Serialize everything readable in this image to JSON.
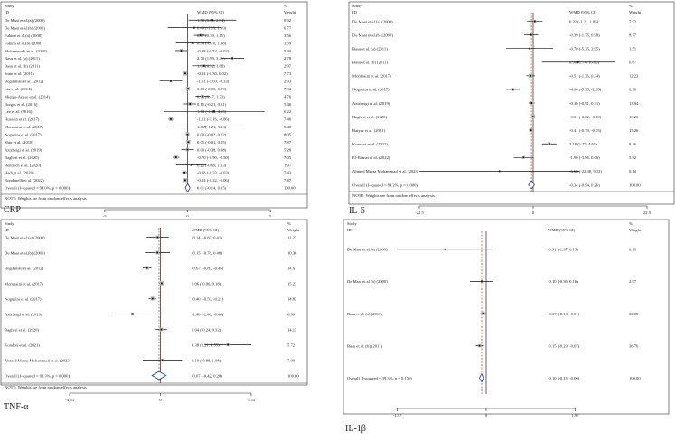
{
  "chart_data": [
    {
      "type": "forest",
      "title": "CRP",
      "headers": {
        "study_line1": "Study",
        "study_line2": "ID",
        "effect": "WMD (95% CI)",
        "weight_line1": "%",
        "weight_line2": "Weight"
      },
      "xlim": [
        -7.5,
        7.5
      ],
      "ticks": [
        "-5",
        "0",
        "5"
      ],
      "ticks_values": [
        -5,
        0,
        5
      ],
      "pooled_line": 0.01,
      "rows": [
        {
          "study": "De Maat et al.(a) (2000)",
          "est": 1.5,
          "lo": 0.06,
          "hi": 2.94,
          "ci": "1.50 (0.06, 2.94)",
          "weight": "0.92"
        },
        {
          "study": "De Maat et al.(b) (2000)",
          "est": 0.4,
          "lo": -1.19,
          "hi": 1.99,
          "ci": "0.40 (-1.19, 1.99)",
          "weight": "0.77"
        },
        {
          "study": "Fukino et al.(a) (2008)",
          "est": 0.77,
          "lo": 0.39,
          "hi": 1.15,
          "ci": "0.77 (0.39, 1.15)",
          "weight": "3.56"
        },
        {
          "study": "Fukino et al.(b) (2008)",
          "est": 0.34,
          "lo": -0.7,
          "hi": 1.38,
          "ci": "0.34 (-0.70, 1.38)",
          "weight": "1.59"
        },
        {
          "study": "Mohammadi et al. (2010)",
          "est": -0.38,
          "lo": -0.74,
          "hi": -0.02,
          "ci": "-0.38 (-0.74, -0.02)",
          "weight": "5.40"
        },
        {
          "study": "Basu et al. (a) (2011)",
          "est": 2.7,
          "lo": 1.99,
          "hi": 3.41,
          "ci": "2.70 (1.99, 3.41)",
          "weight": "2.78"
        },
        {
          "study": "Basu et al. (b) (2011)",
          "est": 1.0,
          "lo": 0.32,
          "hi": 1.68,
          "ci": "1.00 (0.32, 1.68)",
          "weight": "2.97"
        },
        {
          "study": "Sone et al. (2011)",
          "est": -0.14,
          "lo": -0.3,
          "hi": 0.02,
          "ci": "-0.14 (-0.30, 0.02)",
          "weight": "7.73"
        },
        {
          "study": "Bogdanski et al. (2012)",
          "est": -1.01,
          "lo": -1.69,
          "hi": -0.33,
          "ci": "-1.01 (-1.69, -0.33)",
          "weight": "2.93"
        },
        {
          "study": "Liu et al. (2014)",
          "est": 0.03,
          "lo": -0.03,
          "hi": 0.09,
          "ci": "0.03 (-0.03, 0.09)",
          "weight": "7.94"
        },
        {
          "study": "Mielgo-Ayuso et al. (2014)",
          "est": 0.9,
          "lo": 0.47,
          "hi": 1.33,
          "ci": "0.90 (0.47, 1.33)",
          "weight": "4.76"
        },
        {
          "study": "Borges et al. (2016)",
          "est": 0.15,
          "lo": -0.21,
          "hi": 0.51,
          "ci": "0.15 (-0.21, 0.51)",
          "weight": "5.46"
        },
        {
          "study": "Lee et al. (2016)",
          "est": 1.6,
          "lo": -1.45,
          "hi": 4.65,
          "ci": "1.60 (-1.45, 4.65)",
          "weight": "0.22"
        },
        {
          "study": "Hussain et al. (2017)",
          "est": -1.01,
          "lo": -1.16,
          "hi": -0.86,
          "ci": "-1.01 (-1.16, -0.86)",
          "weight": "7.46"
        },
        {
          "study": "Mombaini et al. (2017)",
          "est": 1.06,
          "lo": -1.21,
          "hi": 3.33,
          "ci": "1.06 (-1.21, 3.33)",
          "weight": "0.40"
        },
        {
          "study": "Nogueira et al. (2017)",
          "est": 0.0,
          "lo": -0.02,
          "hi": 0.02,
          "ci": "0.00 (-0.02, 0.02)",
          "weight": "8.05"
        },
        {
          "study": "Shin et al. (2018)",
          "est": 0.05,
          "lo": -0.01,
          "hi": 0.05,
          "ci": "0.05 (-0.01, 0.05)",
          "weight": "7.87"
        },
        {
          "study": "Azizbeigi et al. (2019)",
          "est": 0.0,
          "lo": -0.38,
          "hi": 0.38,
          "ci": "0.00 (-0.38, 0.38)",
          "weight": "5.28"
        },
        {
          "study": "Bagheri et al. (2020)",
          "est": -0.7,
          "lo": -0.9,
          "hi": -0.5,
          "ci": "-0.70 (-0.90, -0.50)",
          "weight": "7.05"
        },
        {
          "study": "Benlloch et al. (2020)",
          "est": 0.22,
          "lo": -0.69,
          "hi": 1.13,
          "ci": "0.22 (-0.69, 1.13)",
          "weight": "1.97"
        },
        {
          "study": "Hadi et al. (2020)",
          "est": -0.18,
          "lo": -0.33,
          "hi": -0.03,
          "ci": "-0.18 (-0.33, -0.03)",
          "weight": "7.43"
        },
        {
          "study": "Rondanelli et al. (2022)",
          "est": -0.14,
          "lo": -0.22,
          "hi": -0.06,
          "ci": "-0.14 (-0.22, -0.06)",
          "weight": "7.87"
        }
      ],
      "overall": {
        "label": "Overall  (I-squared = 94.0%, p = 0.000)",
        "est": 0.01,
        "lo": -0.14,
        "hi": 0.15,
        "ci": "0.01 (-0.14, 0.15)",
        "weight": "100.00"
      },
      "note": "NOTE: Weights are from random effects analysis"
    },
    {
      "type": "forest",
      "title": "IL-6",
      "headers": {
        "study_line1": "Study",
        "study_line2": "ID",
        "effect": "WMD (95% CI)",
        "weight_line1": "%",
        "weight_line2": "Weight"
      },
      "xlim": [
        -30,
        30
      ],
      "ticks": [
        "-22.5",
        "0",
        "22.5"
      ],
      "ticks_values": [
        -22.5,
        0,
        22.5
      ],
      "pooled_line": -0.34,
      "rows": [
        {
          "study": "De Maat et al.(a) (2000)",
          "est": 0.32,
          "lo": -1.21,
          "hi": 1.85,
          "ci": "0.32 (-1.21, 1.85)",
          "weight": "7.92"
        },
        {
          "study": "De Maat et al.(b) (2000)",
          "est": -0.39,
          "lo": -1.76,
          "hi": 0.98,
          "ci": "-0.39 (-1.76, 0.98)",
          "weight": "8.77"
        },
        {
          "study": "Basu et al. (a) (2011)",
          "est": -0.7,
          "lo": -5.35,
          "hi": 3.95,
          "ci": "-0.70 (-5.35, 3.95)",
          "weight": "1.51"
        },
        {
          "study": "Basu et al. (b) (2011)",
          "est": 8.9,
          "lo": 1.74,
          "hi": 16.06,
          "ci": "8.90 (1.74, 16.06)",
          "weight": "0.67"
        },
        {
          "study": "Mombaini et al. (2017)",
          "est": -0.51,
          "lo": -1.36,
          "hi": 0.34,
          "ci": "-0.51 (-1.36, 0.34)",
          "weight": "12.23"
        },
        {
          "study": "Nogueira et al. (2017)",
          "est": -4.0,
          "lo": -5.35,
          "hi": -2.65,
          "ci": "-4.00 (-5.35, -2.65)",
          "weight": "8.90"
        },
        {
          "study": "Azizbeigi et al. (2019)",
          "est": -0.3,
          "lo": -0.91,
          "hi": 0.31,
          "ci": "-0.30 (-0.91, 0.31)",
          "weight": "13.94"
        },
        {
          "study": "Bagheri et al. (2020)",
          "est": -0.01,
          "lo": -0.02,
          "hi": 0.0,
          "ci": "-0.01 (-0.02, -0.00)",
          "weight": "16.26"
        },
        {
          "study": "Baryar et al. (2021)",
          "est": -0.41,
          "lo": -0.79,
          "hi": -0.03,
          "ci": "-0.41 (-0.79, -0.03)",
          "weight": "15.26"
        },
        {
          "study": "Kondori et al. (2021)",
          "est": 3.18,
          "lo": 1.75,
          "hi": 4.61,
          "ci": "3.18 (1.75, 4.61)",
          "weight": "8.46"
        },
        {
          "study": "El-Elimat et al. (2022)",
          "est": -1.9,
          "lo": -3.86,
          "hi": 0.06,
          "ci": "-1.90 (-3.86, 0.06)",
          "weight": "5.92"
        },
        {
          "study": "Ahmed Merza Mohammad et al. (2023)",
          "est": -6.68,
          "lo": -22.48,
          "hi": 9.12,
          "ci": "-6.68 (-22.48, 9.12)",
          "weight": "0.14"
        }
      ],
      "overall": {
        "label": "Overall  (I-squared = 84.2%, p = 0.000)",
        "est": -0.34,
        "lo": -0.94,
        "hi": 0.26,
        "ci": "-0.34 (-0.94, 0.26)",
        "weight": "100.00"
      },
      "note": "NOTE: Weights are from random effects analysis"
    },
    {
      "type": "forest",
      "title": "TNF-α",
      "headers": {
        "study_line1": "Study",
        "study_line2": "ID",
        "effect": "WMD (95% CI)",
        "weight_line1": "%",
        "weight_line2": "Weight"
      },
      "xlim": [
        -6,
        6
      ],
      "ticks": [
        "-4.55",
        "0",
        "4.55"
      ],
      "ticks_values": [
        -4.55,
        0,
        4.55
      ],
      "pooled_line": -0.07,
      "rows": [
        {
          "study": "De Maat et al.(a) (2000)",
          "est": -0.14,
          "lo": -0.69,
          "hi": 0.41,
          "ci": "-0.14 (-0.69, 0.41)",
          "weight": "11.23"
        },
        {
          "study": "De Maat et al.(b) (2000)",
          "est": -0.15,
          "lo": -0.78,
          "hi": 0.48,
          "ci": "-0.15 (-0.78, 0.48)",
          "weight": "10.36"
        },
        {
          "study": "Bogdanski et al. (2012)",
          "est": -0.67,
          "lo": -0.89,
          "hi": -0.45,
          "ci": "-0.67 (-0.89, -0.45)",
          "weight": "14.61"
        },
        {
          "study": "Mombaini et al. (2017)",
          "est": 0.06,
          "lo": -0.06,
          "hi": 0.18,
          "ci": "0.06 (-0.06, 0.18)",
          "weight": "15.23"
        },
        {
          "study": "Nogueira et al. (2017)",
          "est": -0.4,
          "lo": -0.59,
          "hi": -0.21,
          "ci": "-0.40 (-0.59, -0.21)",
          "weight": "14.82"
        },
        {
          "study": "Azizbeigi et al. (2019)",
          "est": -1.4,
          "lo": -2.4,
          "hi": -0.4,
          "ci": "-1.40 (-2.40, -0.40)",
          "weight": "6.90"
        },
        {
          "study": "Bagheri et al. (2020)",
          "est": 0.04,
          "lo": -0.24,
          "hi": 0.32,
          "ci": "0.04 (-0.24, 0.32)",
          "weight": "14.13"
        },
        {
          "study": "Kondori et al. (2021)",
          "est": 3.38,
          "lo": 2.21,
          "hi": 4.55,
          "ci": "3.38 (2.21, 4.55)",
          "weight": "5.72"
        },
        {
          "study": "Ahmed Merza Mohammad et al. (2023)",
          "est": 0.1,
          "lo": -0.88,
          "hi": 1.08,
          "ci": "0.10 (-0.88, 1.08)",
          "weight": "7.00"
        }
      ],
      "overall": {
        "label": "Overall  (I-squared = 90.3%, p = 0.000)",
        "est": -0.07,
        "lo": -0.42,
        "hi": 0.28,
        "ci": "-0.07 (-0.42, 0.28)",
        "weight": "100.00"
      },
      "note": "NOTE: Weights are from random effects analysis"
    },
    {
      "type": "forest",
      "title": "IL-1β",
      "headers": {
        "study_line1": "Study",
        "study_line2": "ID",
        "effect": "WMD (95% CI)",
        "weight_line1": "%",
        "weight_line2": "Weight"
      },
      "xlim": [
        -2.6,
        2.6
      ],
      "ticks": [
        "-1.97",
        "0",
        "1.97"
      ],
      "ticks_values": [
        -1.97,
        0,
        1.97
      ],
      "pooled_line": -0.1,
      "rows": [
        {
          "study": "De Maat et al.(a) (2000)",
          "est": -0.91,
          "lo": -1.97,
          "hi": 0.15,
          "ci": "-0.91 (-1.97, 0.15)",
          "weight": "0.19"
        },
        {
          "study": "De Maat et al.(b) (2000)",
          "est": -0.1,
          "lo": -0.36,
          "hi": 0.16,
          "ci": "-0.10 (-0.36, 0.16)",
          "weight": "2.97"
        },
        {
          "study": "Basu et al. (a) (2011)",
          "est": -0.07,
          "lo": -0.13,
          "hi": -0.01,
          "ci": "-0.07 (-0.13, -0.01)",
          "weight": "60.09"
        },
        {
          "study": "Basu et al. (b) (2011)",
          "est": -0.15,
          "lo": -0.23,
          "hi": -0.07,
          "ci": "-0.15 (-0.23, -0.07)",
          "weight": "36.76"
        }
      ],
      "overall": {
        "label": "Overall  (I-squared = 39.3%, p = 0.176)",
        "est": -0.1,
        "lo": -0.15,
        "hi": -0.06,
        "ci": "-0.10 (-0.15, -0.06)",
        "weight": "100.00"
      },
      "note": ""
    }
  ]
}
